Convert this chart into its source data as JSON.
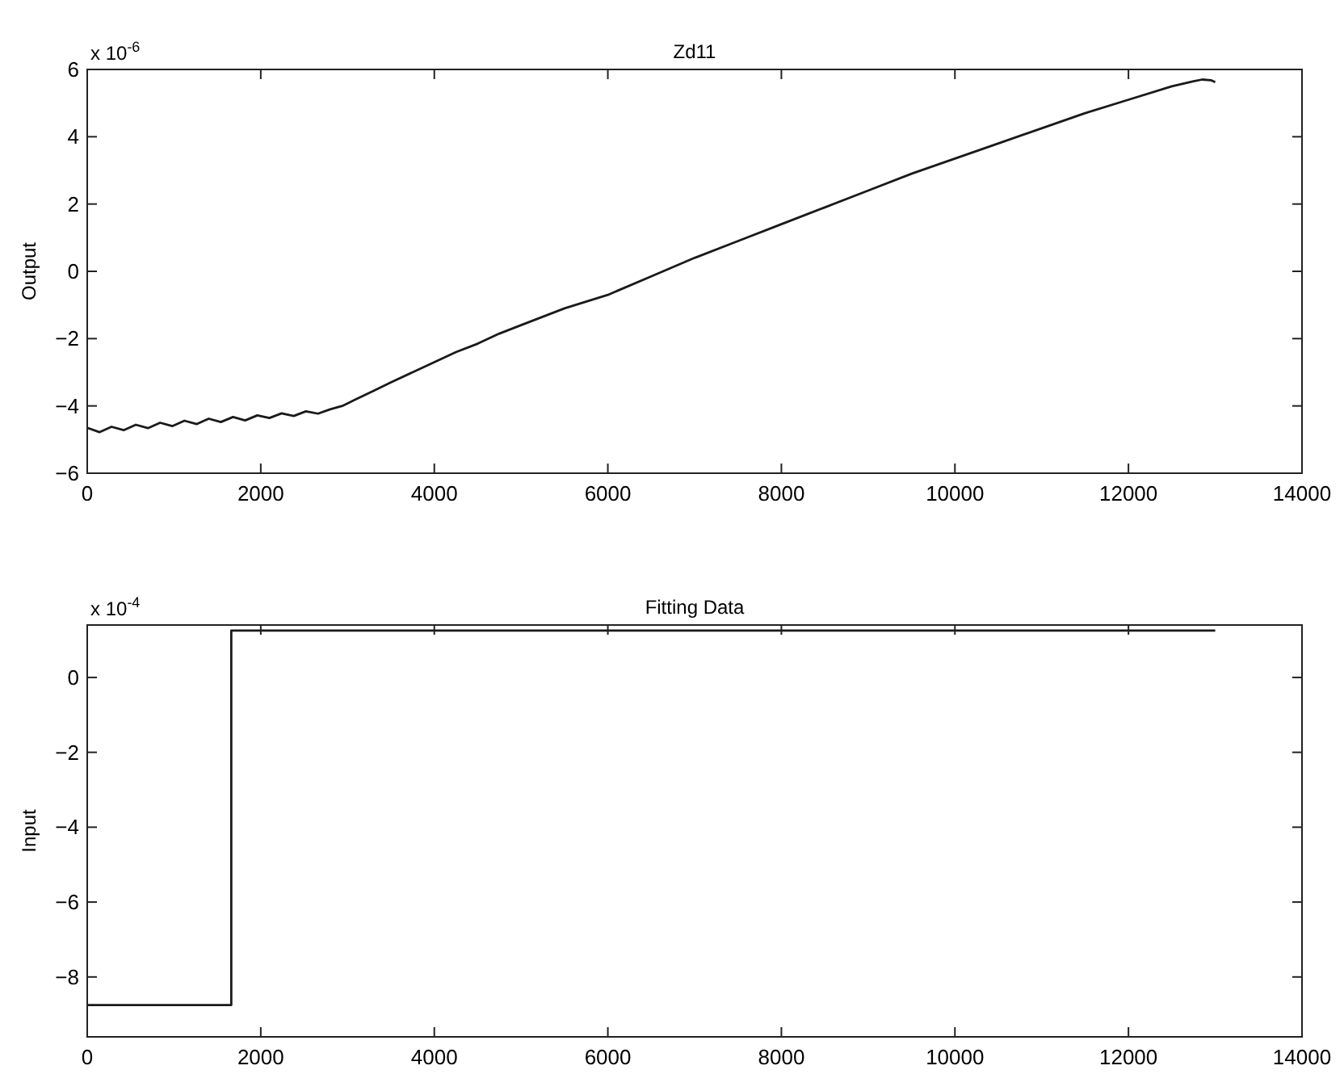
{
  "chart_data": [
    {
      "type": "line",
      "title": "Zd11",
      "ylabel": "Output",
      "annotations": [
        "x 10$^{-6}$"
      ],
      "xlim": [
        0,
        14000
      ],
      "xticks": [
        0,
        2000,
        4000,
        6000,
        8000,
        10000,
        12000,
        14000
      ],
      "ylim": [
        -6,
        6
      ],
      "yticks": [
        -6,
        -4,
        -2,
        0,
        2,
        4,
        6
      ],
      "series": [
        {
          "color": "#1a1a1a",
          "x": [
            0,
            140,
            280,
            420,
            560,
            700,
            840,
            980,
            1120,
            1260,
            1400,
            1540,
            1680,
            1820,
            1960,
            2100,
            2240,
            2380,
            2520,
            2660,
            2800,
            2940,
            3100,
            3300,
            3500,
            3750,
            4000,
            4250,
            4500,
            4750,
            5000,
            5500,
            6000,
            6500,
            7000,
            7500,
            8000,
            8500,
            9000,
            9500,
            10000,
            10500,
            11000,
            11500,
            12000,
            12500,
            12750,
            12850,
            12950,
            13000
          ],
          "values": [
            -4.65,
            -4.78,
            -4.62,
            -4.72,
            -4.56,
            -4.66,
            -4.5,
            -4.6,
            -4.44,
            -4.54,
            -4.38,
            -4.48,
            -4.33,
            -4.43,
            -4.28,
            -4.36,
            -4.22,
            -4.3,
            -4.16,
            -4.23,
            -4.1,
            -4.0,
            -3.8,
            -3.55,
            -3.3,
            -3.0,
            -2.7,
            -2.4,
            -2.15,
            -1.85,
            -1.6,
            -1.1,
            -0.7,
            -0.15,
            0.4,
            0.9,
            1.4,
            1.9,
            2.4,
            2.9,
            3.35,
            3.8,
            4.25,
            4.7,
            5.1,
            5.5,
            5.65,
            5.7,
            5.68,
            5.62
          ]
        }
      ]
    },
    {
      "type": "step",
      "title": "Fitting Data",
      "ylabel": "Input",
      "annotations": [
        "x 10$^{-4}$"
      ],
      "xlim": [
        0,
        14000
      ],
      "xticks": [
        0,
        2000,
        4000,
        6000,
        8000,
        10000,
        12000,
        14000
      ],
      "ylim": [
        -9.6,
        1.4
      ],
      "yticks": [
        -8,
        -6,
        -4,
        -2,
        0
      ],
      "series": [
        {
          "color": "#1a1a1a",
          "x": [
            0,
            1660,
            13000
          ],
          "values": [
            -8.75,
            1.25,
            1.25
          ]
        }
      ]
    }
  ]
}
